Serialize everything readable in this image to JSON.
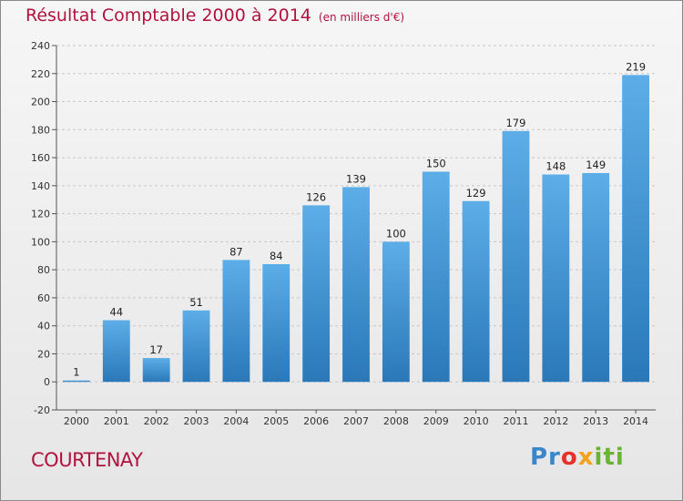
{
  "header": {
    "title": "Résultat Comptable 2000 à 2014",
    "unit": "(en milliers d'€)"
  },
  "footer": {
    "city": "COURTENAY",
    "logo": "Proxiti"
  },
  "colors": {
    "bar_light": "#5dade8",
    "bar_dark": "#2a78b8",
    "title": "#b0133f",
    "grid": "#c8c8c8"
  },
  "chart_data": {
    "type": "bar",
    "categories": [
      "2000",
      "2001",
      "2002",
      "2003",
      "2004",
      "2005",
      "2006",
      "2007",
      "2008",
      "2009",
      "2010",
      "2011",
      "2012",
      "2013",
      "2014"
    ],
    "values": [
      1,
      44,
      17,
      51,
      87,
      84,
      126,
      139,
      100,
      150,
      129,
      179,
      148,
      149,
      219
    ],
    "data_labels": [
      "1",
      "44",
      "17",
      "51",
      "87",
      "84",
      "126",
      "139",
      "100",
      "150",
      "129",
      "179",
      "148",
      "149",
      "219"
    ],
    "ylim": [
      -20,
      240
    ],
    "yticks": [
      -20,
      0,
      20,
      40,
      60,
      80,
      100,
      120,
      140,
      160,
      180,
      200,
      220,
      240
    ],
    "grid": true
  }
}
